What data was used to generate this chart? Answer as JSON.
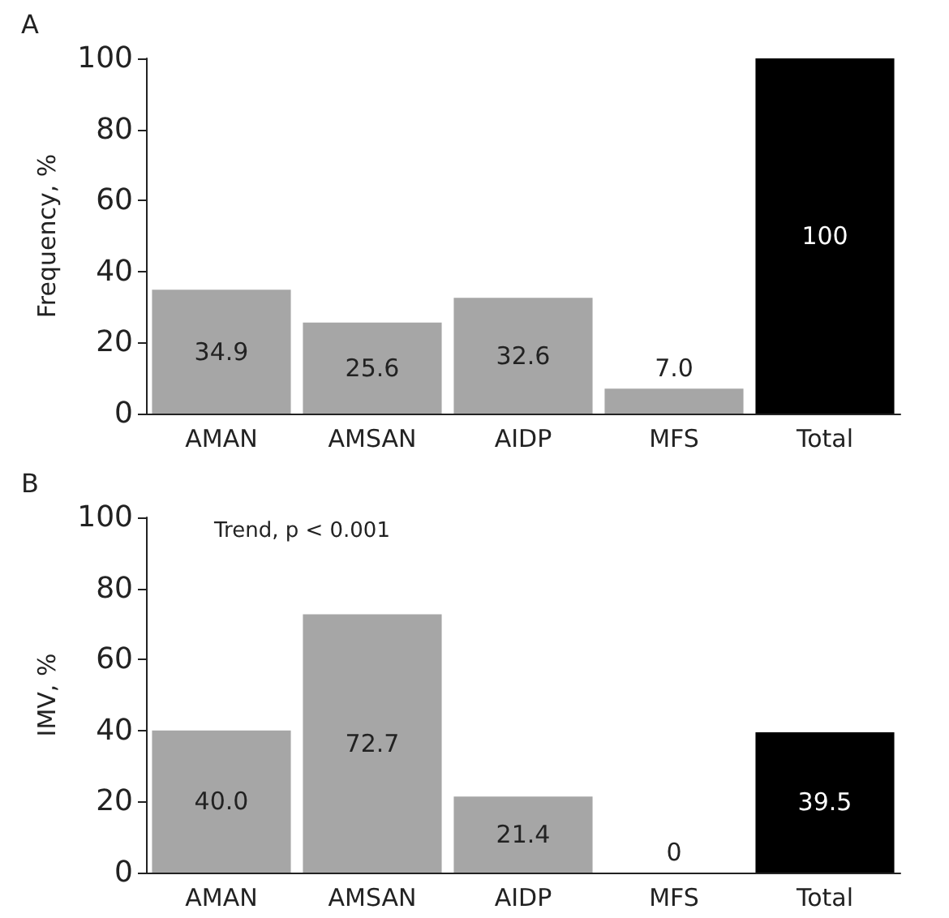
{
  "chart_data": [
    {
      "type": "bar",
      "title": "A",
      "ylabel": "Frequency, %",
      "categories": [
        "AMAN",
        "AMSAN",
        "AIDP",
        "MFS",
        "Total"
      ],
      "values": [
        34.9,
        25.6,
        32.6,
        7.0,
        100
      ],
      "value_labels": [
        "34.9",
        "25.6",
        "32.6",
        "7.0",
        "100"
      ],
      "colors": [
        "#a6a6a6",
        "#a6a6a6",
        "#a6a6a6",
        "#a6a6a6",
        "#000000"
      ],
      "ylim": [
        0,
        100
      ],
      "yticks": [
        0,
        20,
        40,
        60,
        80,
        100
      ],
      "grid": false
    },
    {
      "type": "bar",
      "title": "B",
      "ylabel": "IMV, %",
      "categories": [
        "AMAN",
        "AMSAN",
        "AIDP",
        "MFS",
        "Total"
      ],
      "values": [
        40.0,
        72.7,
        21.4,
        0,
        39.5
      ],
      "value_labels": [
        "40.0",
        "72.7",
        "21.4",
        "0",
        "39.5"
      ],
      "colors": [
        "#a6a6a6",
        "#a6a6a6",
        "#a6a6a6",
        "#a6a6a6",
        "#000000"
      ],
      "ylim": [
        0,
        100
      ],
      "yticks": [
        0,
        20,
        40,
        60,
        80,
        100
      ],
      "grid": false,
      "annotations": [
        "Trend, p < 0.001"
      ]
    }
  ]
}
